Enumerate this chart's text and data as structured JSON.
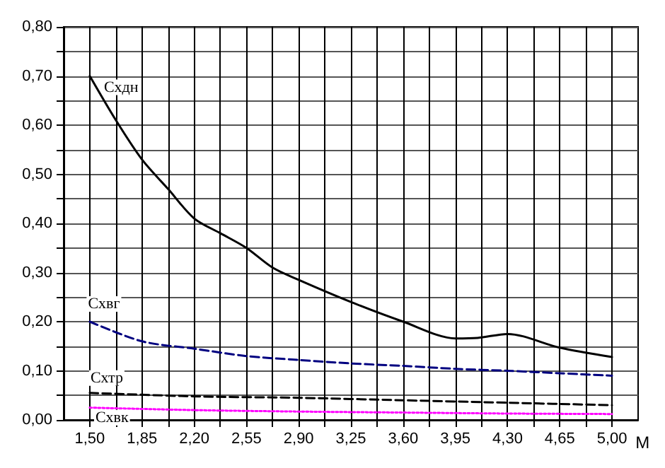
{
  "chart_data": {
    "type": "line",
    "xlabel": "M",
    "xlim": [
      1.325,
      5.175
    ],
    "ylim": [
      0,
      0.8
    ],
    "xticks": [
      {
        "value": 1.5,
        "label": "1,50"
      },
      {
        "value": 1.675,
        "label": null
      },
      {
        "value": 1.85,
        "label": "1,85"
      },
      {
        "value": 2.025,
        "label": null
      },
      {
        "value": 2.2,
        "label": "2,20"
      },
      {
        "value": 2.375,
        "label": null
      },
      {
        "value": 2.55,
        "label": "2,55"
      },
      {
        "value": 2.725,
        "label": null
      },
      {
        "value": 2.9,
        "label": "2,90"
      },
      {
        "value": 3.075,
        "label": null
      },
      {
        "value": 3.25,
        "label": "3,25"
      },
      {
        "value": 3.425,
        "label": null
      },
      {
        "value": 3.6,
        "label": "3,60"
      },
      {
        "value": 3.775,
        "label": null
      },
      {
        "value": 3.95,
        "label": "3,95"
      },
      {
        "value": 4.125,
        "label": null
      },
      {
        "value": 4.3,
        "label": "4,30"
      },
      {
        "value": 4.475,
        "label": null
      },
      {
        "value": 4.65,
        "label": "4,65"
      },
      {
        "value": 4.825,
        "label": null
      },
      {
        "value": 5.0,
        "label": "5,00"
      }
    ],
    "yticks": [
      {
        "value": 0,
        "label": "0,00"
      },
      {
        "value": 0.05,
        "label": null
      },
      {
        "value": 0.1,
        "label": "0,10"
      },
      {
        "value": 0.15,
        "label": null
      },
      {
        "value": 0.2,
        "label": "0,20"
      },
      {
        "value": 0.25,
        "label": null
      },
      {
        "value": 0.3,
        "label": "0,30"
      },
      {
        "value": 0.35,
        "label": null
      },
      {
        "value": 0.4,
        "label": "0,40"
      },
      {
        "value": 0.45,
        "label": null
      },
      {
        "value": 0.5,
        "label": "0,50"
      },
      {
        "value": 0.55,
        "label": null
      },
      {
        "value": 0.6,
        "label": "0,60"
      },
      {
        "value": 0.65,
        "label": null
      },
      {
        "value": 0.7,
        "label": "0,70"
      },
      {
        "value": 0.75,
        "label": null
      },
      {
        "value": 0.8,
        "label": "0,80"
      }
    ],
    "grid": true,
    "legend": false,
    "marker": "none",
    "series": [
      {
        "name": "Схдн",
        "color": "#000000",
        "line_style": "solid",
        "x": [
          1.5,
          1.675,
          1.85,
          2.025,
          2.2,
          2.375,
          2.55,
          2.725,
          2.9,
          3.25,
          3.6,
          3.95,
          4.1,
          4.3,
          4.65,
          5.0
        ],
        "values": [
          0.7,
          0.61,
          0.53,
          0.47,
          0.41,
          0.38,
          0.35,
          0.31,
          0.285,
          0.24,
          0.2,
          0.166,
          0.167,
          0.175,
          0.147,
          0.128
        ]
      },
      {
        "name": "Схвг",
        "color": "#000080",
        "line_style": "dashed",
        "x": [
          1.5,
          1.85,
          2.2,
          2.55,
          2.9,
          3.25,
          3.6,
          3.95,
          4.3,
          4.65,
          5.0
        ],
        "values": [
          0.2,
          0.16,
          0.145,
          0.13,
          0.122,
          0.115,
          0.11,
          0.104,
          0.1,
          0.095,
          0.09
        ]
      },
      {
        "name": "Схтр",
        "color": "#000000",
        "line_style": "dashed",
        "x": [
          1.5,
          2.2,
          2.9,
          3.6,
          4.3,
          5.0
        ],
        "values": [
          0.055,
          0.048,
          0.045,
          0.04,
          0.035,
          0.03
        ]
      },
      {
        "name": "Схвк",
        "color": "#ff00ff",
        "line_style": "dotted",
        "x": [
          1.5,
          2.2,
          2.9,
          3.6,
          4.3,
          5.0
        ],
        "values": [
          0.025,
          0.02,
          0.017,
          0.015,
          0.013,
          0.012
        ]
      }
    ]
  }
}
